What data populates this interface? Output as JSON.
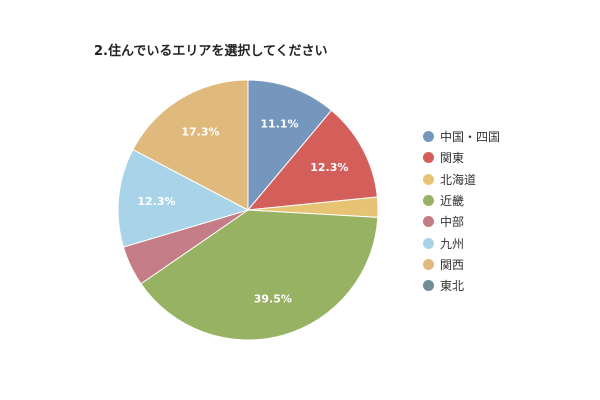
{
  "chart_data": {
    "type": "pie",
    "title": "2.住んでいるエリアを選択してください",
    "legend_position": "right",
    "slices": [
      {
        "label": "中国・四国",
        "value": 11.1,
        "color": "#7697bd",
        "value_label": "11.1%"
      },
      {
        "label": "関東",
        "value": 12.3,
        "color": "#d45e5a",
        "value_label": "12.3%"
      },
      {
        "label": "北海道",
        "value": 2.5,
        "color": "#e7c374",
        "value_label": ""
      },
      {
        "label": "近畿",
        "value": 39.5,
        "color": "#98b264",
        "value_label": "39.5%"
      },
      {
        "label": "中部",
        "value": 5.0,
        "color": "#c47c86",
        "value_label": ""
      },
      {
        "label": "九州",
        "value": 12.3,
        "color": "#a9d3e8",
        "value_label": "12.3%"
      },
      {
        "label": "関西",
        "value": 17.3,
        "color": "#e0ba7c",
        "value_label": "17.3%"
      },
      {
        "label": "東北",
        "value": 0.0,
        "color": "#6f8f94",
        "value_label": ""
      }
    ]
  }
}
